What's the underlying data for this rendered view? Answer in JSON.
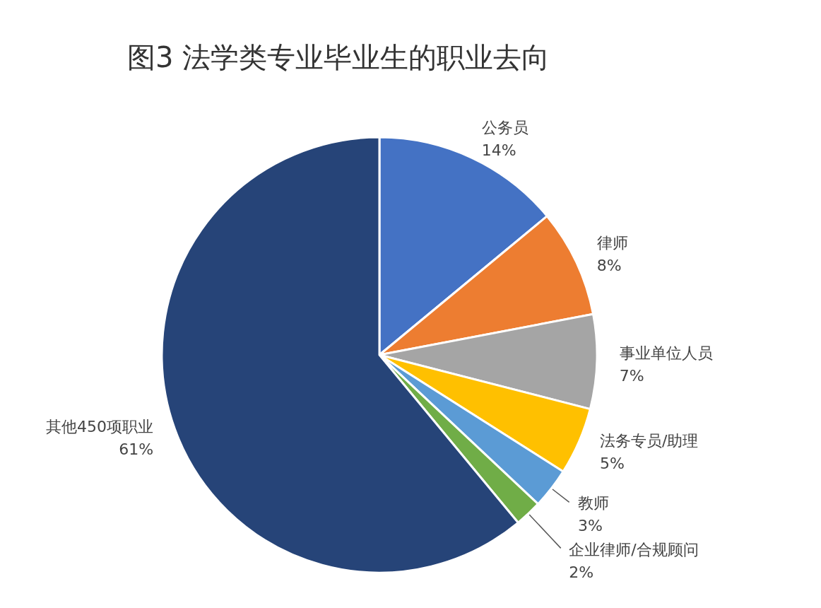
{
  "chart_data": {
    "type": "pie",
    "title": "图3 法学类专业毕业生的职业去向",
    "categories": [
      "公务员",
      "律师",
      "事业单位人员",
      "法务专员/助理",
      "教师",
      "企业律师/合规顾问",
      "其他450项职业"
    ],
    "values": [
      14,
      8,
      7,
      5,
      3,
      2,
      61
    ],
    "value_labels": [
      "14%",
      "8%",
      "7%",
      "5%",
      "3%",
      "2%",
      "61%"
    ],
    "colors": [
      "#4472c4",
      "#ed7d31",
      "#a5a5a5",
      "#ffc000",
      "#5b9bd5",
      "#70ad47",
      "#264478"
    ]
  }
}
